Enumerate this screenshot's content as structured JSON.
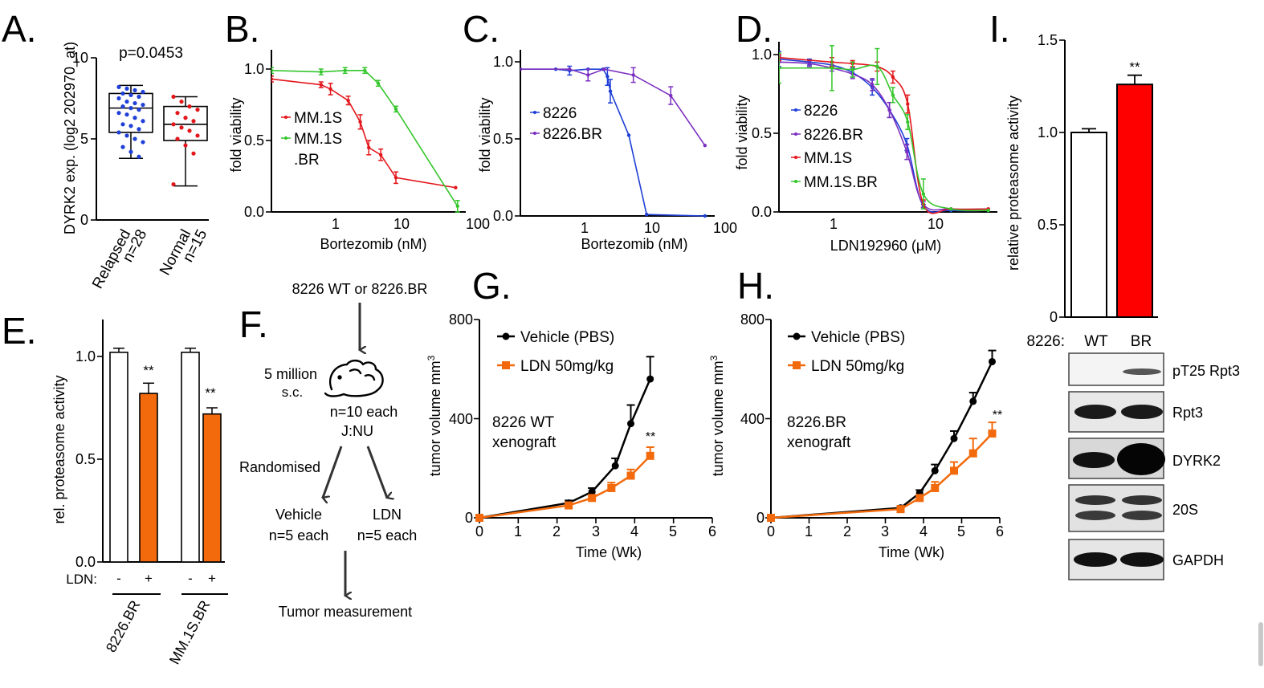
{
  "panels": {
    "A": {
      "label": "A.",
      "ylabel": "DYRK2 exp. (log2 202970_at)",
      "pvalue": "p=0.0453",
      "yticks": [
        "0",
        "5",
        "10"
      ],
      "groups": [
        {
          "name": "Relapsed",
          "n": "n=28",
          "color": "#1f3fd6",
          "min": 3.8,
          "q1": 5.4,
          "median": 6.9,
          "q3": 7.8,
          "max": 8.3,
          "points": [
            8.2,
            8.1,
            8.0,
            7.9,
            7.8,
            7.7,
            7.6,
            7.5,
            7.3,
            7.2,
            7.1,
            7.0,
            6.9,
            6.8,
            6.6,
            6.5,
            6.3,
            6.1,
            5.9,
            5.8,
            5.6,
            5.4,
            5.2,
            5.0,
            4.8,
            4.5,
            4.2,
            3.9
          ]
        },
        {
          "name": "Normal",
          "n": "n=15",
          "color": "#e3161b",
          "min": 2.1,
          "q1": 4.9,
          "median": 5.9,
          "q3": 7.0,
          "max": 7.6,
          "points": [
            7.6,
            7.3,
            7.0,
            6.8,
            6.6,
            6.3,
            6.1,
            5.9,
            5.7,
            5.5,
            5.2,
            5.0,
            4.6,
            4.1,
            2.2
          ]
        }
      ]
    },
    "B": {
      "label": "B.",
      "xlabel": "Bortezomib (nM)",
      "ylabel": "fold viability",
      "xticks": [
        "1",
        "10",
        "100"
      ],
      "yticks": [
        "0.0",
        "0.5",
        "1.0"
      ],
      "legend": [
        "MM.1S",
        "MM.1S",
        ".BR"
      ]
    },
    "C": {
      "label": "C.",
      "xlabel": "Bortezomib (nM)",
      "ylabel": "fold viability",
      "xticks": [
        "1",
        "10",
        "100"
      ],
      "yticks": [
        "0.0",
        "0.5",
        "1.0"
      ],
      "legend": [
        "8226",
        "8226.BR"
      ]
    },
    "D": {
      "label": "D.",
      "xlabel": "LDN192960 (μM)",
      "ylabel": "fold viability",
      "xticks": [
        "1",
        "10"
      ],
      "yticks": [
        "0.0",
        "0.5",
        "1.0"
      ],
      "legend": [
        "8226",
        "8226.BR",
        "MM.1S",
        "MM.1S.BR"
      ]
    },
    "E": {
      "label": "E.",
      "ylabel": "rel. proteasome activity",
      "yticks": [
        "0.0",
        "0.5",
        "1.0"
      ],
      "ldn_label": "LDN:",
      "minus": "-",
      "plus": "+",
      "sig": "**",
      "groups": [
        "8226.BR",
        "MM.1S.BR"
      ]
    },
    "F": {
      "label": "F.",
      "start": "8226 WT or 8226.BR",
      "dose_line1": "5 million",
      "dose_line2": "s.c.",
      "n_line1": "n=10 each",
      "n_line2": "J:NU",
      "randomised": "Randomised",
      "arm1_line1": "Vehicle",
      "arm1_line2": "n=5 each",
      "arm2_line1": "LDN",
      "arm2_line2": "n=5 each",
      "end": "Tumor measurement"
    },
    "G": {
      "label": "G.",
      "xlabel": "Time (Wk)",
      "ylabel": "tumor volume mm",
      "ylabel_sup": "3",
      "xticks": [
        "0",
        "1",
        "2",
        "3",
        "4",
        "5",
        "6"
      ],
      "yticks": [
        "0",
        "400",
        "800"
      ],
      "legend": [
        "Vehicle (PBS)",
        "LDN 50mg/kg"
      ],
      "note_line1": "8226 WT",
      "note_line2": "xenograft",
      "sig": "**"
    },
    "H": {
      "label": "H.",
      "xlabel": "Time (Wk)",
      "ylabel": "tumor volume mm",
      "ylabel_sup": "3",
      "xticks": [
        "0",
        "1",
        "2",
        "3",
        "4",
        "5",
        "6"
      ],
      "yticks": [
        "0",
        "400",
        "800"
      ],
      "legend": [
        "Vehicle (PBS)",
        "LDN 50mg/kg"
      ],
      "note_line1": "8226.BR",
      "note_line2": "xenograft",
      "sig": "**"
    },
    "I": {
      "label": "I.",
      "ylabel": "relative proteasome activity",
      "yticks": [
        "0",
        "0.5",
        "1.0",
        "1.5"
      ],
      "sig": "**",
      "blot_header": "8226:",
      "lanes": [
        "WT",
        "BR"
      ],
      "blot_rows": [
        "pT25 Rpt3",
        "Rpt3",
        "DYRK2",
        "20S",
        "GAPDH"
      ]
    }
  },
  "colors": {
    "blue": "#1f3fd6",
    "red": "#e3161b",
    "green": "#35c62c",
    "purple": "#7b2fc0",
    "orange": "#f26a0c",
    "black": "#000000",
    "bar_red": "#ff0000"
  },
  "chart_data": [
    {
      "panel": "A",
      "type": "box",
      "ylabel": "DYRK2 exp. (log2 202970_at)",
      "ylim": [
        0,
        10
      ],
      "categories": [
        "Relapsed n=28",
        "Normal n=15"
      ],
      "series": [
        {
          "name": "Relapsed",
          "min": 3.8,
          "q1": 5.4,
          "median": 6.9,
          "q3": 7.8,
          "max": 8.3
        },
        {
          "name": "Normal",
          "min": 2.1,
          "q1": 4.9,
          "median": 5.9,
          "q3": 7.0,
          "max": 7.6
        }
      ]
    },
    {
      "panel": "B",
      "type": "line",
      "xscale": "log",
      "xlabel": "Bortezomib (nM)",
      "ylabel": "fold viability",
      "xlim": [
        0.15,
        100
      ],
      "ylim": [
        0,
        1.0
      ],
      "series": [
        {
          "name": "MM.1S",
          "color": "#e3161b",
          "x": [
            0.15,
            0.8,
            1.1,
            2.0,
            3.0,
            4.0,
            6.0,
            10,
            75
          ],
          "y": [
            0.93,
            0.89,
            0.86,
            0.78,
            0.63,
            0.45,
            0.4,
            0.24,
            0.17
          ],
          "err": [
            0.02,
            0.02,
            0.04,
            0.03,
            0.05,
            0.05,
            0.04,
            0.04,
            0.0
          ]
        },
        {
          "name": "MM.1S.BR",
          "color": "#35c62c",
          "x": [
            0.15,
            0.8,
            1.8,
            3.5,
            5.5,
            10,
            80
          ],
          "y": [
            0.99,
            0.98,
            0.99,
            0.99,
            0.9,
            0.72,
            0.04
          ],
          "err": [
            0.02,
            0.02,
            0.02,
            0.02,
            0.02,
            0.02,
            0.04
          ]
        }
      ]
    },
    {
      "panel": "C",
      "type": "line",
      "xscale": "log",
      "xlabel": "Bortezomib (nM)",
      "ylabel": "fold viability",
      "xlim": [
        0.15,
        100
      ],
      "ylim": [
        0,
        1.05
      ],
      "series": [
        {
          "name": "8226",
          "color": "#1f3fd6",
          "x": [
            0.15,
            0.5,
            0.8,
            1.5,
            2.5,
            2.9,
            3.2,
            6.0,
            11,
            80
          ],
          "y": [
            1.0,
            1.0,
            0.99,
            1.0,
            1.0,
            0.95,
            0.85,
            0.55,
            0.01,
            0.0
          ],
          "err": [
            0.0,
            0.0,
            0.03,
            0.0,
            0.0,
            0.06,
            0.08,
            0.0,
            0.0,
            0.0
          ]
        },
        {
          "name": "8226.BR",
          "color": "#7b2fc0",
          "x": [
            0.15,
            0.8,
            1.5,
            2.6,
            7.0,
            25,
            80
          ],
          "y": [
            1.0,
            1.0,
            0.96,
            1.0,
            0.96,
            0.82,
            0.48
          ],
          "err": [
            0.0,
            0.0,
            0.04,
            0.0,
            0.05,
            0.06,
            0.0
          ]
        }
      ]
    },
    {
      "panel": "D",
      "type": "line",
      "xscale": "log",
      "xlabel": "LDN192960 (μM)",
      "ylabel": "fold viability",
      "xlim": [
        0.3,
        40
      ],
      "ylim": [
        0,
        1.05
      ],
      "series": [
        {
          "name": "8226",
          "color": "#1f3fd6",
          "x": [
            0.3,
            0.6,
            1.0,
            1.6,
            2.5,
            3.7,
            5.5,
            8.0,
            15,
            35
          ],
          "y": [
            1.02,
            1.0,
            0.98,
            0.93,
            0.83,
            0.68,
            0.45,
            0.04,
            0.01,
            0.01
          ],
          "err": [
            0.05,
            0.02,
            0.02,
            0.03,
            0.05,
            0.05,
            0.04,
            0.01,
            0.0,
            0.0
          ]
        },
        {
          "name": "8226.BR",
          "color": "#7b2fc0",
          "x": [
            0.3,
            0.6,
            1.0,
            1.6,
            2.5,
            3.7,
            5.5,
            8.0,
            15,
            35
          ],
          "y": [
            1.0,
            0.99,
            0.96,
            0.92,
            0.85,
            0.68,
            0.4,
            0.05,
            0.02,
            0.02
          ],
          "err": [
            0.04,
            0.02,
            0.02,
            0.03,
            0.04,
            0.05,
            0.05,
            0.02,
            0.0,
            0.0
          ]
        },
        {
          "name": "MM.1S",
          "color": "#e3161b",
          "x": [
            0.3,
            1.0,
            1.6,
            2.8,
            4.0,
            5.6,
            8.0,
            15,
            35
          ],
          "y": [
            1.03,
            1.0,
            0.99,
            0.97,
            0.9,
            0.72,
            0.05,
            0.02,
            0.02
          ],
          "err": [
            0.02,
            0.03,
            0.02,
            0.03,
            0.04,
            0.06,
            0.03,
            0.0,
            0.0
          ]
        },
        {
          "name": "MM.1S.BR",
          "color": "#35c62c",
          "x": [
            0.3,
            1.0,
            1.6,
            2.8,
            4.0,
            5.6,
            8.0,
            15,
            35
          ],
          "y": [
            0.96,
            0.96,
            0.95,
            0.97,
            0.78,
            0.6,
            0.12,
            0.02,
            0.01
          ],
          "err": [
            0.1,
            0.15,
            0.05,
            0.12,
            0.05,
            0.05,
            0.1,
            0.0,
            0.0
          ]
        }
      ]
    },
    {
      "panel": "E",
      "type": "bar",
      "ylabel": "rel. proteasome activity",
      "ylim": [
        0,
        1.2
      ],
      "categories": [
        "8226.BR -",
        "8226.BR +",
        "MM.1S.BR -",
        "MM.1S.BR +"
      ],
      "values": [
        1.02,
        0.82,
        1.02,
        0.72
      ],
      "errors": [
        0.02,
        0.05,
        0.02,
        0.03
      ]
    },
    {
      "panel": "G",
      "type": "line",
      "xlabel": "Time (Wk)",
      "ylabel": "tumor volume mm3",
      "xlim": [
        0,
        6
      ],
      "ylim": [
        0,
        800
      ],
      "series": [
        {
          "name": "Vehicle (PBS)",
          "color": "#000000",
          "x": [
            0,
            2.3,
            2.9,
            3.5,
            3.9,
            4.4
          ],
          "y": [
            0,
            60,
            105,
            210,
            380,
            560
          ],
          "err": [
            0,
            10,
            15,
            30,
            75,
            90
          ]
        },
        {
          "name": "LDN 50mg/kg",
          "color": "#f26a0c",
          "x": [
            0,
            2.3,
            2.9,
            3.4,
            3.9,
            4.4
          ],
          "y": [
            0,
            50,
            80,
            120,
            170,
            250
          ],
          "err": [
            0,
            8,
            12,
            22,
            25,
            35
          ]
        }
      ],
      "annotations": [
        "8226 WT xenograft",
        "**"
      ]
    },
    {
      "panel": "H",
      "type": "line",
      "xlabel": "Time (Wk)",
      "ylabel": "tumor volume mm3",
      "xlim": [
        0,
        6
      ],
      "ylim": [
        0,
        800
      ],
      "series": [
        {
          "name": "Vehicle (PBS)",
          "color": "#000000",
          "x": [
            0,
            3.4,
            3.9,
            4.3,
            4.8,
            5.3,
            5.8
          ],
          "y": [
            0,
            40,
            100,
            190,
            320,
            470,
            630
          ],
          "err": [
            0,
            8,
            12,
            25,
            30,
            35,
            45
          ]
        },
        {
          "name": "LDN 50mg/kg",
          "color": "#f26a0c",
          "x": [
            0,
            3.4,
            3.9,
            4.3,
            4.8,
            5.3,
            5.8
          ],
          "y": [
            0,
            35,
            80,
            120,
            190,
            260,
            340
          ],
          "err": [
            0,
            6,
            12,
            25,
            35,
            60,
            45
          ]
        }
      ],
      "annotations": [
        "8226.BR xenograft",
        "**"
      ]
    },
    {
      "panel": "I",
      "type": "bar",
      "ylabel": "relative proteasome activity",
      "ylim": [
        0,
        1.5
      ],
      "categories": [
        "WT",
        "BR"
      ],
      "values": [
        1.0,
        1.26
      ],
      "errors": [
        0.02,
        0.05
      ],
      "colors": [
        "#ffffff",
        "#ff0000"
      ]
    }
  ]
}
